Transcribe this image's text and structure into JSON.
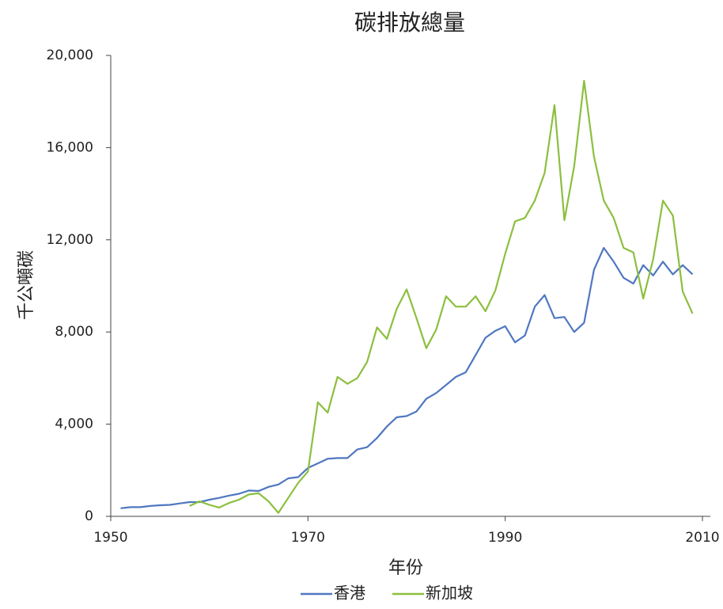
{
  "chart_data": {
    "type": "line",
    "title": "碳排放總量",
    "x_label": "年份",
    "y_label": "千公噸碳",
    "x": [
      1951,
      1952,
      1953,
      1954,
      1955,
      1956,
      1957,
      1958,
      1959,
      1960,
      1961,
      1962,
      1963,
      1964,
      1965,
      1966,
      1967,
      1968,
      1969,
      1970,
      1971,
      1972,
      1973,
      1974,
      1975,
      1976,
      1977,
      1978,
      1979,
      1980,
      1981,
      1982,
      1983,
      1984,
      1985,
      1986,
      1987,
      1988,
      1989,
      1990,
      1991,
      1992,
      1993,
      1994,
      1995,
      1996,
      1997,
      1998,
      1999,
      2000,
      2001,
      2002,
      2003,
      2004,
      2005,
      2006,
      2007,
      2008,
      2009
    ],
    "series": [
      {
        "name": "香港",
        "color": "#4f77c0",
        "values": [
          350,
          400,
          400,
          450,
          480,
          500,
          560,
          620,
          620,
          720,
          800,
          900,
          980,
          1120,
          1100,
          1280,
          1380,
          1650,
          1700,
          2100,
          2300,
          2500,
          2530,
          2530,
          2900,
          3000,
          3400,
          3900,
          4300,
          4350,
          4550,
          5100,
          5350,
          5700,
          6050,
          6250,
          7000,
          7750,
          8050,
          8250,
          7550,
          7850,
          9100,
          9600,
          8600,
          8650,
          8000,
          8400,
          10700,
          11650,
          11050,
          10350,
          10100,
          10900,
          10450,
          11050,
          10500,
          10900,
          10500
        ]
      },
      {
        "name": "新加坡",
        "color": "#8cbf3f",
        "values": [
          null,
          null,
          null,
          null,
          null,
          null,
          null,
          450,
          650,
          500,
          380,
          580,
          720,
          950,
          1000,
          650,
          150,
          800,
          1450,
          1950,
          4950,
          4500,
          6050,
          5750,
          6000,
          6700,
          8200,
          7700,
          9000,
          9850,
          8600,
          7300,
          8100,
          9550,
          9100,
          9100,
          9550,
          8900,
          9800,
          11400,
          12800,
          12950,
          13700,
          14900,
          17850,
          12850,
          15200,
          18900,
          15600,
          13700,
          12950,
          11650,
          11450,
          9450,
          11150,
          13700,
          13050,
          9750,
          8800
        ]
      }
    ],
    "xlim": [
      1950,
      2010
    ],
    "xticks": [
      1950,
      1970,
      1990,
      2010
    ],
    "ylim": [
      0,
      20000
    ],
    "yticks": [
      0,
      {
        "value": 4000,
        "label": "4,000"
      },
      {
        "value": 8000,
        "label": "8,000"
      },
      {
        "value": 12000,
        "label": "12,000"
      },
      {
        "value": 16000,
        "label": "16,000"
      },
      {
        "value": 20000,
        "label": "20,000"
      }
    ],
    "legend": "bottom"
  }
}
